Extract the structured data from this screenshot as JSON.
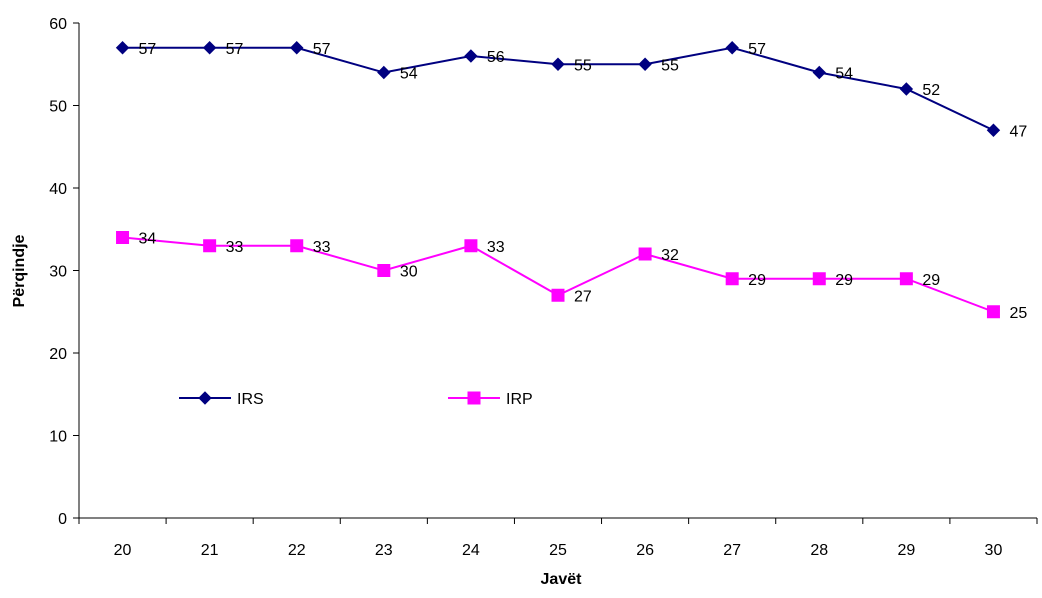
{
  "chart_data": {
    "type": "line",
    "title": "",
    "xlabel": "Javët",
    "ylabel": "Përqindje",
    "categories": [
      "20",
      "21",
      "22",
      "23",
      "24",
      "25",
      "26",
      "27",
      "28",
      "29",
      "30"
    ],
    "ylim": [
      0,
      60
    ],
    "yticks": [
      "0",
      "10",
      "20",
      "30",
      "40",
      "50",
      "60"
    ],
    "grid": false,
    "legend_position": "middle-left",
    "series": [
      {
        "name": "IRS",
        "color": "#000080",
        "marker": "diamond",
        "values": [
          57,
          57,
          57,
          54,
          56,
          55,
          55,
          57,
          54,
          52,
          47
        ],
        "labels": [
          "57",
          "57",
          "57",
          "54",
          "56",
          "55",
          "55",
          "57",
          "54",
          "52",
          "47"
        ]
      },
      {
        "name": "IRP",
        "color": "#ff00ff",
        "marker": "square",
        "values": [
          34,
          33,
          33,
          30,
          33,
          27,
          32,
          29,
          29,
          29,
          25
        ],
        "labels": [
          "34",
          "33",
          "33",
          "30",
          "33",
          "27",
          "32",
          "29",
          "29",
          "29",
          "25"
        ]
      }
    ]
  }
}
